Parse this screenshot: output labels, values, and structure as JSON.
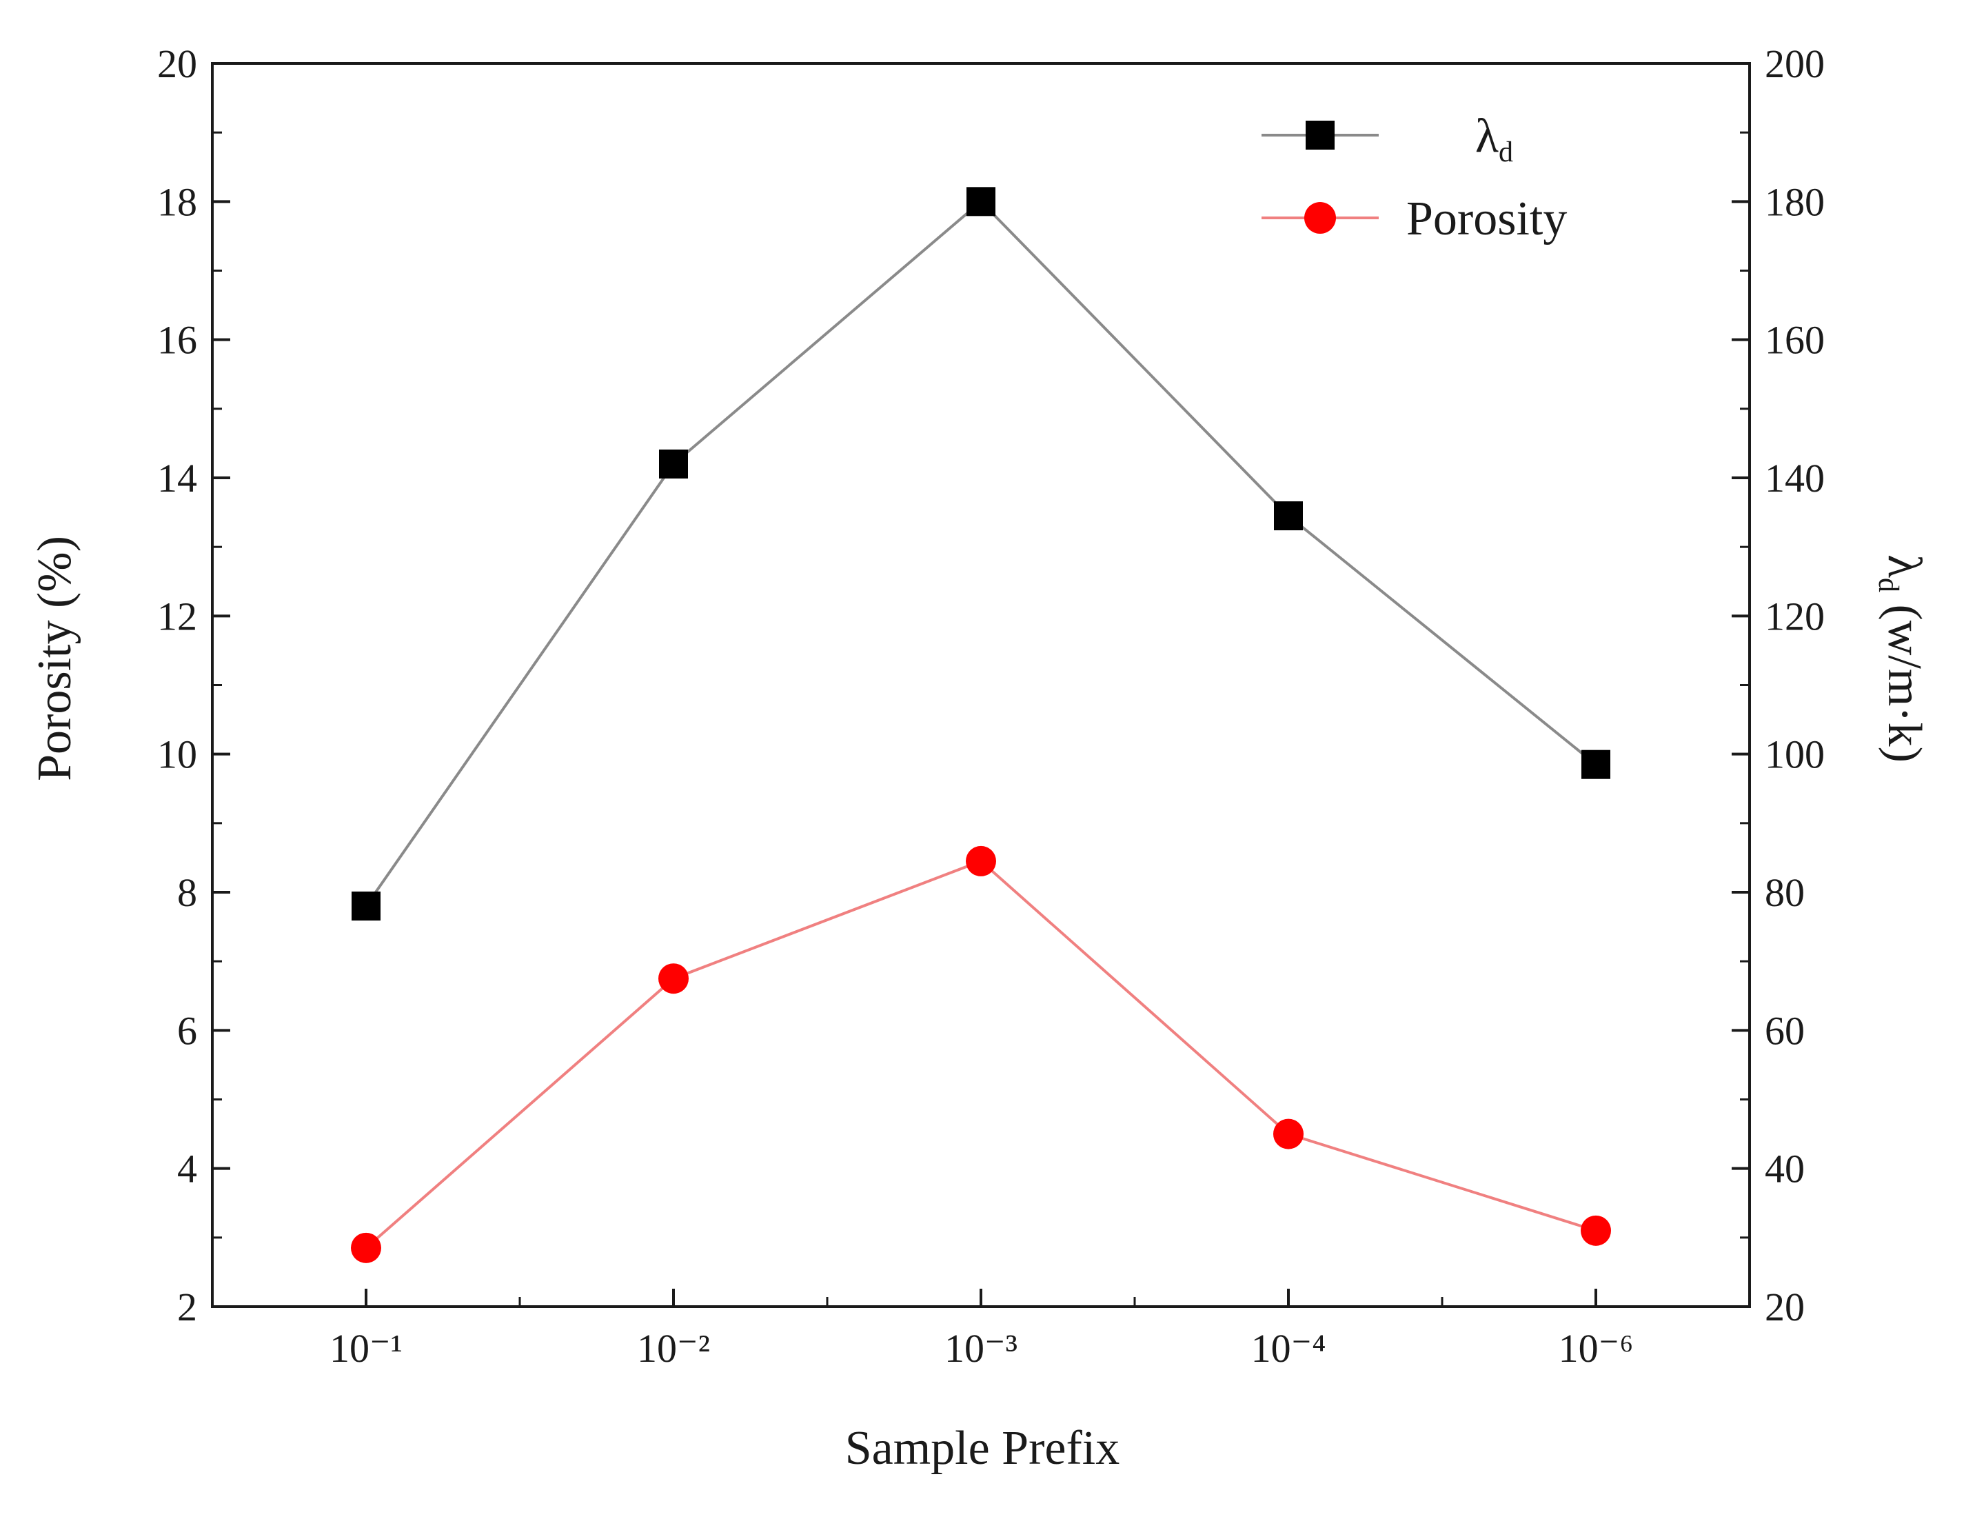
{
  "chart_data": {
    "type": "line",
    "categories": [
      "10⁻¹",
      "10⁻²",
      "10⁻³",
      "10⁻⁴",
      "10⁻⁶"
    ],
    "series": [
      {
        "name": "λd",
        "axis": "right",
        "marker": "square",
        "color": "#000000",
        "line_color": "#8a8a8a",
        "values": [
          78,
          142,
          180,
          134.5,
          98.5
        ]
      },
      {
        "name": "Porosity",
        "axis": "left",
        "marker": "circle",
        "color": "#ff0000",
        "line_color": "#f08080",
        "values": [
          2.85,
          6.75,
          8.45,
          4.5,
          3.1
        ]
      }
    ],
    "xlabel": "Sample Prefix",
    "ylabel_left": "Porosity (%)",
    "ylabel_right": "λd (w/m·k)",
    "ylim_left": [
      2,
      20
    ],
    "ylim_right": [
      20,
      200
    ],
    "yticks_left": [
      "2",
      "4",
      "6",
      "8",
      "10",
      "12",
      "14",
      "16",
      "18",
      "20"
    ],
    "yticks_right": [
      "20",
      "40",
      "60",
      "80",
      "100",
      "120",
      "140",
      "160",
      "180",
      "200"
    ],
    "legend": {
      "placement": "top-right",
      "labels": [
        {
          "main": "λ",
          "sub": "d"
        },
        {
          "main": "Porosity",
          "sub": ""
        }
      ]
    },
    "right_label": {
      "main": "λ",
      "sub": "d",
      "rest": " (w/m·k)"
    },
    "grid": false
  }
}
